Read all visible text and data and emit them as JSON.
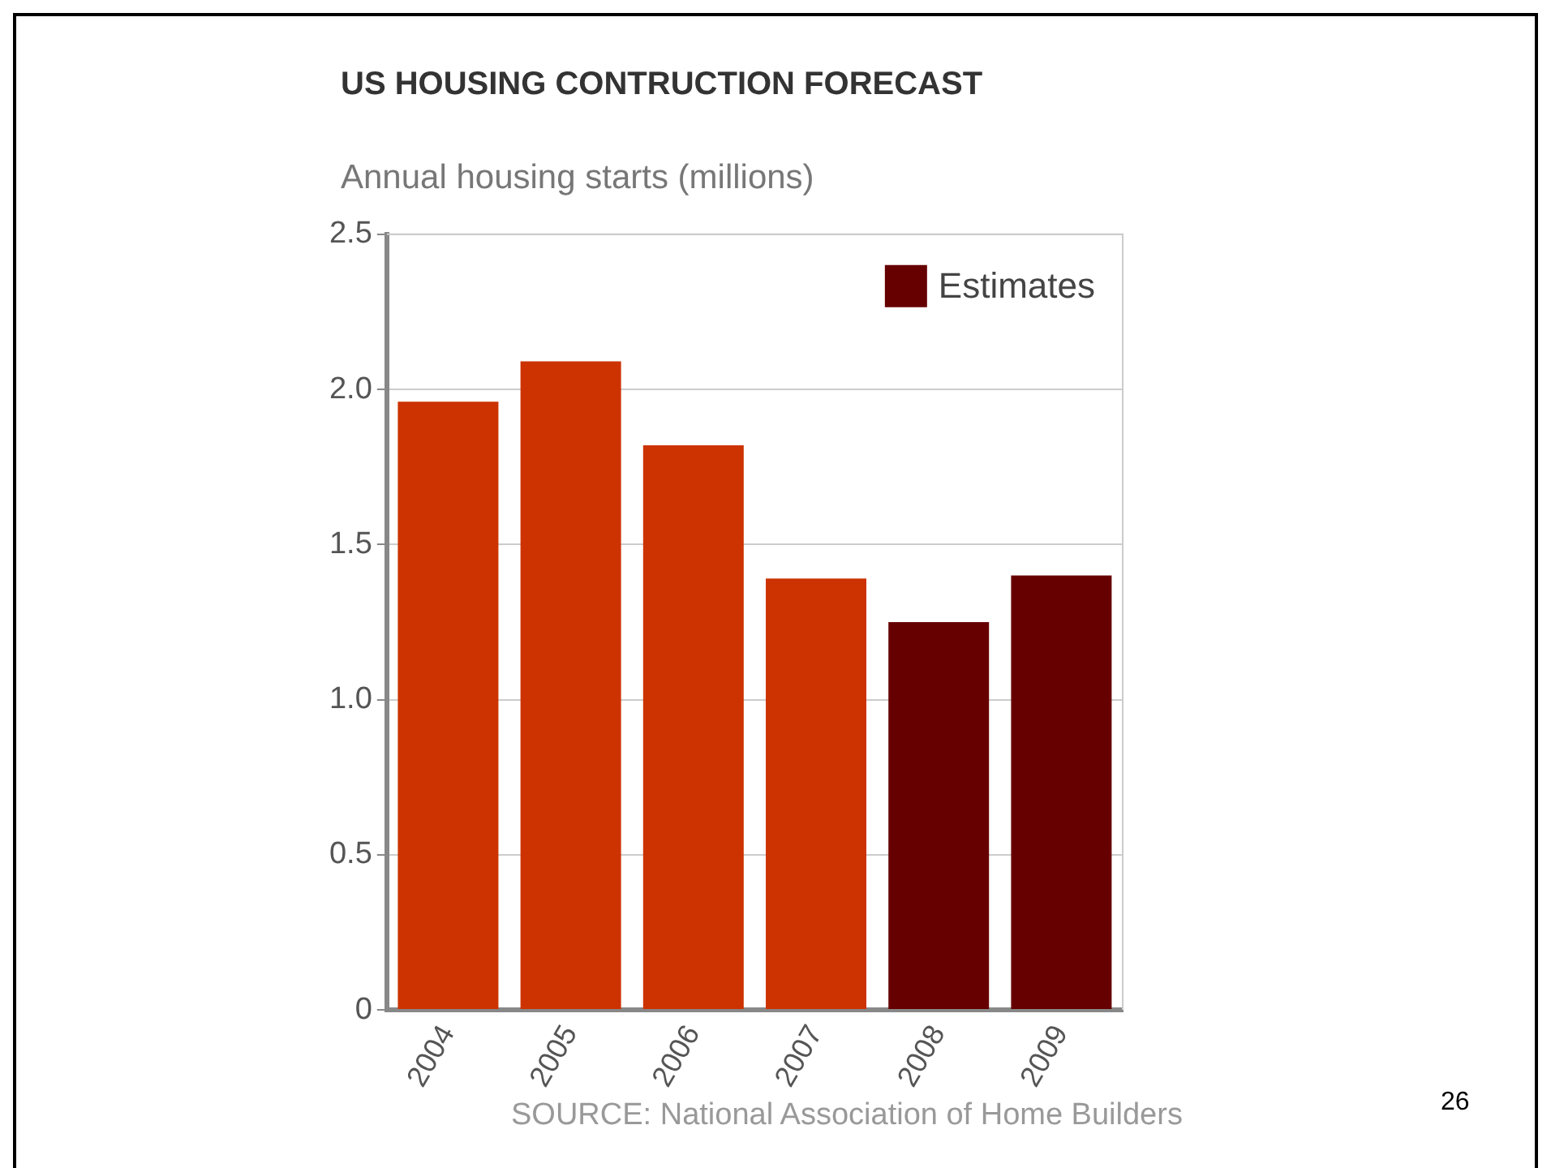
{
  "chart_data": {
    "type": "bar",
    "title": "US HOUSING CONTRUCTION FORECAST",
    "subtitle": "Annual housing starts (millions)",
    "categories": [
      "2004",
      "2005",
      "2006",
      "2007",
      "2008",
      "2009"
    ],
    "series": [
      {
        "color": "#cc3300",
        "values": [
          1.96,
          2.09,
          1.82,
          1.39,
          null,
          null
        ]
      },
      {
        "name": "Estimates",
        "color": "#660000",
        "values": [
          null,
          null,
          null,
          null,
          1.25,
          1.4
        ]
      }
    ],
    "ylim": [
      0,
      2.5
    ],
    "yticks": [
      0,
      {
        "value": 0.5,
        "label": "0.5"
      },
      {
        "value": 1,
        "label": "1.0"
      },
      {
        "value": 1.5,
        "label": "1.5"
      },
      {
        "value": 2,
        "label": "2.0"
      },
      {
        "value": 2.5,
        "label": "2.5"
      }
    ],
    "grid": "y",
    "legend": "top right",
    "annotations": [
      "SOURCE: National Association of Home Builders",
      "26"
    ]
  }
}
